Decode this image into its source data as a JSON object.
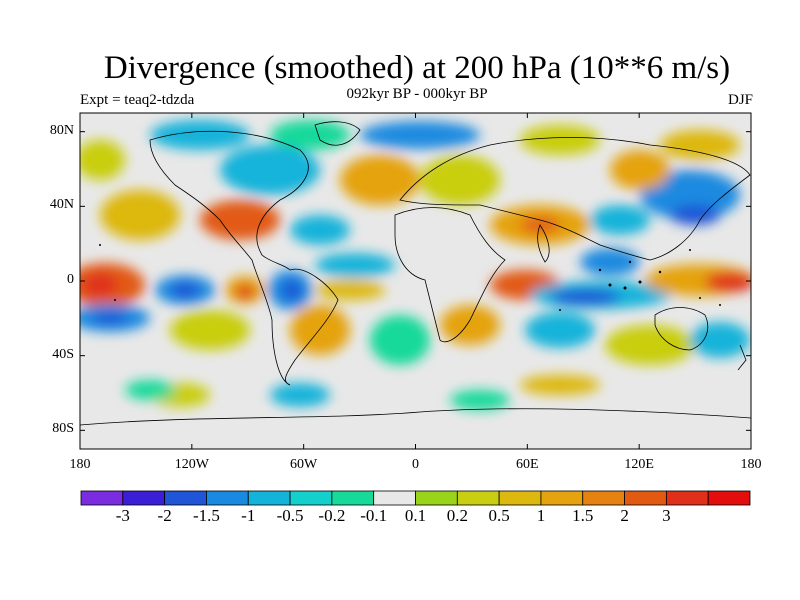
{
  "title": "Divergence (smoothed) at 200 hPa (10**6 m/s)",
  "subtitle": "092kyr BP - 000kyr BP",
  "experiment": "Expt = teaq2-tdzda",
  "season": "DJF",
  "axes": {
    "y_ticks": [
      {
        "value": 80,
        "label": "80N"
      },
      {
        "value": 40,
        "label": "40N"
      },
      {
        "value": 0,
        "label": "0"
      },
      {
        "value": -40,
        "label": "40S"
      },
      {
        "value": -80,
        "label": "80S"
      }
    ],
    "x_ticks": [
      {
        "value": -180,
        "label": "180"
      },
      {
        "value": -120,
        "label": "120W"
      },
      {
        "value": -60,
        "label": "60W"
      },
      {
        "value": 0,
        "label": "0"
      },
      {
        "value": 60,
        "label": "60E"
      },
      {
        "value": 120,
        "label": "120E"
      },
      {
        "value": 180,
        "label": "180"
      }
    ]
  },
  "colorbar": {
    "colors": [
      "#7b2be0",
      "#3b1fd6",
      "#1f55d6",
      "#1a8ae0",
      "#13b3da",
      "#13d0cc",
      "#17d99a",
      "#e8e8e8",
      "#9ad41a",
      "#c9ce10",
      "#ddb80e",
      "#e5a310",
      "#e58212",
      "#e25a12",
      "#e0301a",
      "#e30d0d"
    ],
    "labels": [
      "-3",
      "-2",
      "-1.5",
      "-1",
      "-0.5",
      "-0.2",
      "-0.1",
      "0.1",
      "0.2",
      "0.5",
      "1",
      "1.5",
      "2",
      "3"
    ]
  }
}
